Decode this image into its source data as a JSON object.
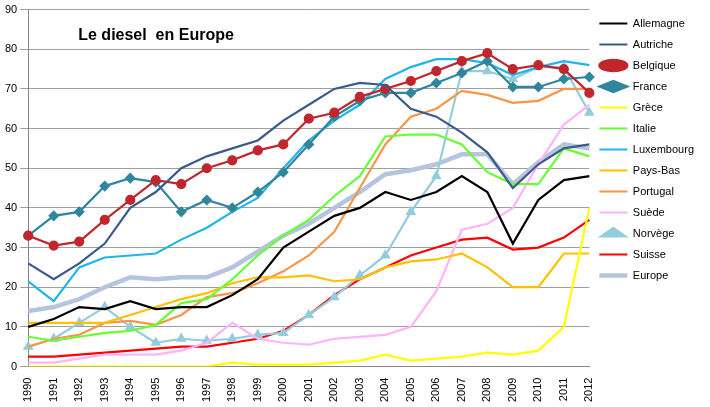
{
  "chart_data": {
    "type": "line",
    "title": "Le diesel  en Europe",
    "categories": [
      "1990",
      "1991",
      "1992",
      "1993",
      "1994",
      "1995",
      "1996",
      "1997",
      "1998",
      "1999",
      "2000",
      "2001",
      "2002",
      "2003",
      "2004",
      "2005",
      "2006",
      "2007",
      "2008",
      "2009",
      "2010",
      "2011",
      "2012"
    ],
    "ylim": [
      0,
      90
    ],
    "yticks": [
      0,
      10,
      20,
      30,
      40,
      50,
      60,
      70,
      80,
      90
    ],
    "grid": true,
    "legend": "right",
    "series": [
      {
        "name": "Allemagne",
        "color": "#000000",
        "marker": "none",
        "line_style": "solid",
        "values": [
          10,
          12,
          15,
          14.5,
          16.5,
          14.5,
          15,
          15,
          18,
          22,
          30,
          34,
          38,
          40,
          44,
          42,
          44,
          48,
          44,
          31,
          42,
          47,
          48
        ]
      },
      {
        "name": "Autriche",
        "color": "#3a5a8c",
        "marker": "none",
        "line_style": "solid",
        "values": [
          26,
          22,
          26,
          31,
          40,
          44,
          50,
          53,
          55,
          57,
          62,
          66,
          70,
          71.5,
          71,
          65,
          63,
          59,
          54,
          45,
          51,
          55,
          56
        ]
      },
      {
        "name": "Belgique",
        "color": "#c0272d",
        "marker": "circle",
        "line_style": "solid",
        "values": [
          33,
          30.5,
          31.5,
          37,
          42,
          47,
          46,
          50,
          52,
          54.5,
          56,
          62.5,
          64,
          68,
          70,
          72,
          74.5,
          77,
          79,
          75,
          76,
          75,
          69
        ]
      },
      {
        "name": "France",
        "color": "#31859c",
        "marker": "diamond",
        "line_style": "solid",
        "values": [
          33,
          38,
          39,
          45.5,
          47.5,
          46.5,
          39,
          42,
          40,
          44,
          49,
          56,
          63,
          67,
          69,
          69,
          71.5,
          74,
          77,
          70.5,
          70.5,
          72.5,
          73
        ]
      },
      {
        "name": "Grèce",
        "color": "#ffff00",
        "marker": "none",
        "line_style": "solid",
        "values": [
          0,
          0,
          0,
          0,
          0,
          0,
          0,
          0,
          1,
          0.5,
          0.5,
          0.5,
          1,
          1.5,
          3,
          1.5,
          2,
          2.5,
          3.5,
          3,
          4,
          10,
          40
        ]
      },
      {
        "name": "Italie",
        "color": "#66ff33",
        "marker": "none",
        "line_style": "solid",
        "values": [
          7.5,
          6.5,
          7.5,
          8.5,
          9,
          10.5,
          16,
          17,
          22,
          28,
          33,
          37,
          43,
          48,
          58,
          58.5,
          58.5,
          56,
          49,
          46,
          46,
          55,
          53
        ]
      },
      {
        "name": "Luxembourg",
        "color": "#1fb5e8",
        "marker": "none",
        "line_style": "solid",
        "values": [
          21.5,
          16.5,
          25,
          27.5,
          28,
          28.5,
          32,
          35,
          39,
          42.5,
          50,
          57,
          62,
          66,
          72.5,
          75.5,
          77.5,
          77.5,
          76.5,
          73.5,
          75.5,
          77,
          76
        ]
      },
      {
        "name": "Pays-Bas",
        "color": "#ffc000",
        "marker": "none",
        "line_style": "solid",
        "values": [
          11,
          11,
          11,
          11,
          13,
          15,
          17,
          18.5,
          21,
          22.5,
          22.5,
          23,
          21.5,
          22,
          25,
          26.5,
          27,
          28.5,
          25,
          20,
          20,
          28.5,
          28.5
        ]
      },
      {
        "name": "Portugal",
        "color": "#f79646",
        "marker": "none",
        "line_style": "solid",
        "values": [
          5,
          7,
          8,
          11,
          11.5,
          10.5,
          13,
          17.5,
          18.5,
          21,
          24,
          28,
          34,
          45,
          56,
          63,
          65,
          69.5,
          68.5,
          66.5,
          67,
          70,
          70
        ]
      },
      {
        "name": "Suède",
        "color": "#ffb3ff",
        "marker": "none",
        "line_style": "solid",
        "values": [
          1,
          1,
          2,
          3,
          3,
          3,
          4,
          6,
          11,
          7,
          6,
          5.5,
          7,
          7.5,
          8,
          10,
          19,
          34.5,
          36,
          40,
          51,
          61,
          66
        ]
      },
      {
        "name": "Norvège",
        "color": "#93cddd",
        "marker": "triangle",
        "line_style": "solid",
        "values": [
          5,
          7,
          11,
          15,
          10,
          6,
          7,
          6.5,
          7,
          8,
          8.5,
          13,
          17.5,
          23,
          28,
          39,
          48,
          74.5,
          74.5,
          72.5,
          75.5,
          75.5,
          64
        ]
      },
      {
        "name": "Suisse",
        "color": "#ff0000",
        "marker": "none",
        "line_style": "solid",
        "values": [
          2.5,
          2.5,
          3,
          3.5,
          4,
          4.5,
          5,
          5,
          6,
          7,
          9,
          13,
          18,
          22,
          25,
          28,
          30,
          32,
          32.5,
          29.5,
          30,
          32.5,
          37
        ]
      },
      {
        "name": "Europe",
        "color": "#b7c4dd",
        "marker": "none",
        "line_style": "thick",
        "values": [
          14,
          15,
          17,
          20,
          22.5,
          22,
          22.5,
          22.5,
          25,
          29,
          33,
          36,
          40,
          44,
          48.5,
          49.5,
          51,
          53.5,
          53.5,
          46,
          51.5,
          56,
          55
        ]
      }
    ]
  }
}
